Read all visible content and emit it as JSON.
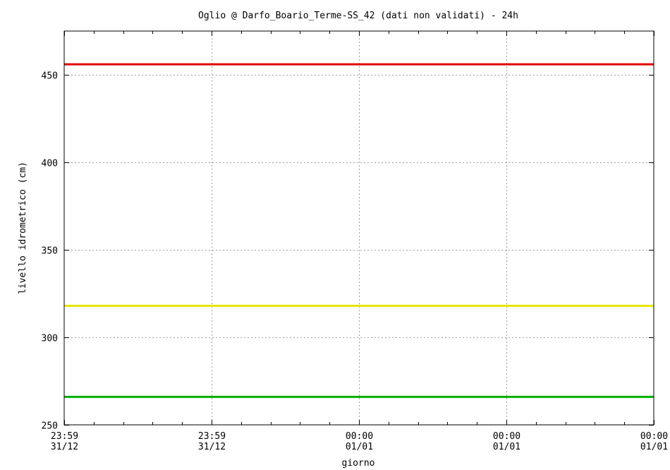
{
  "chart_data": {
    "type": "line",
    "title": "Oglio @ Darfo_Boario_Terme-SS_42 (dati non validati) - 24h",
    "xlabel": "giorno",
    "ylabel": "livello idrometrico (cm)",
    "ylim": [
      250,
      475
    ],
    "yticks": [
      250,
      300,
      350,
      400,
      450
    ],
    "xticks": [
      {
        "time": "23:59",
        "date": "31/12"
      },
      {
        "time": "23:59",
        "date": "31/12"
      },
      {
        "time": "00:00",
        "date": "01/01"
      },
      {
        "time": "00:00",
        "date": "01/01"
      },
      {
        "time": "00:00",
        "date": "01/01"
      }
    ],
    "grid": true,
    "legend": "none",
    "thresholds": [
      {
        "value": 456,
        "color": "#e00000"
      },
      {
        "value": 318,
        "color": "#e6e600"
      },
      {
        "value": 266,
        "color": "#00b000"
      }
    ]
  }
}
